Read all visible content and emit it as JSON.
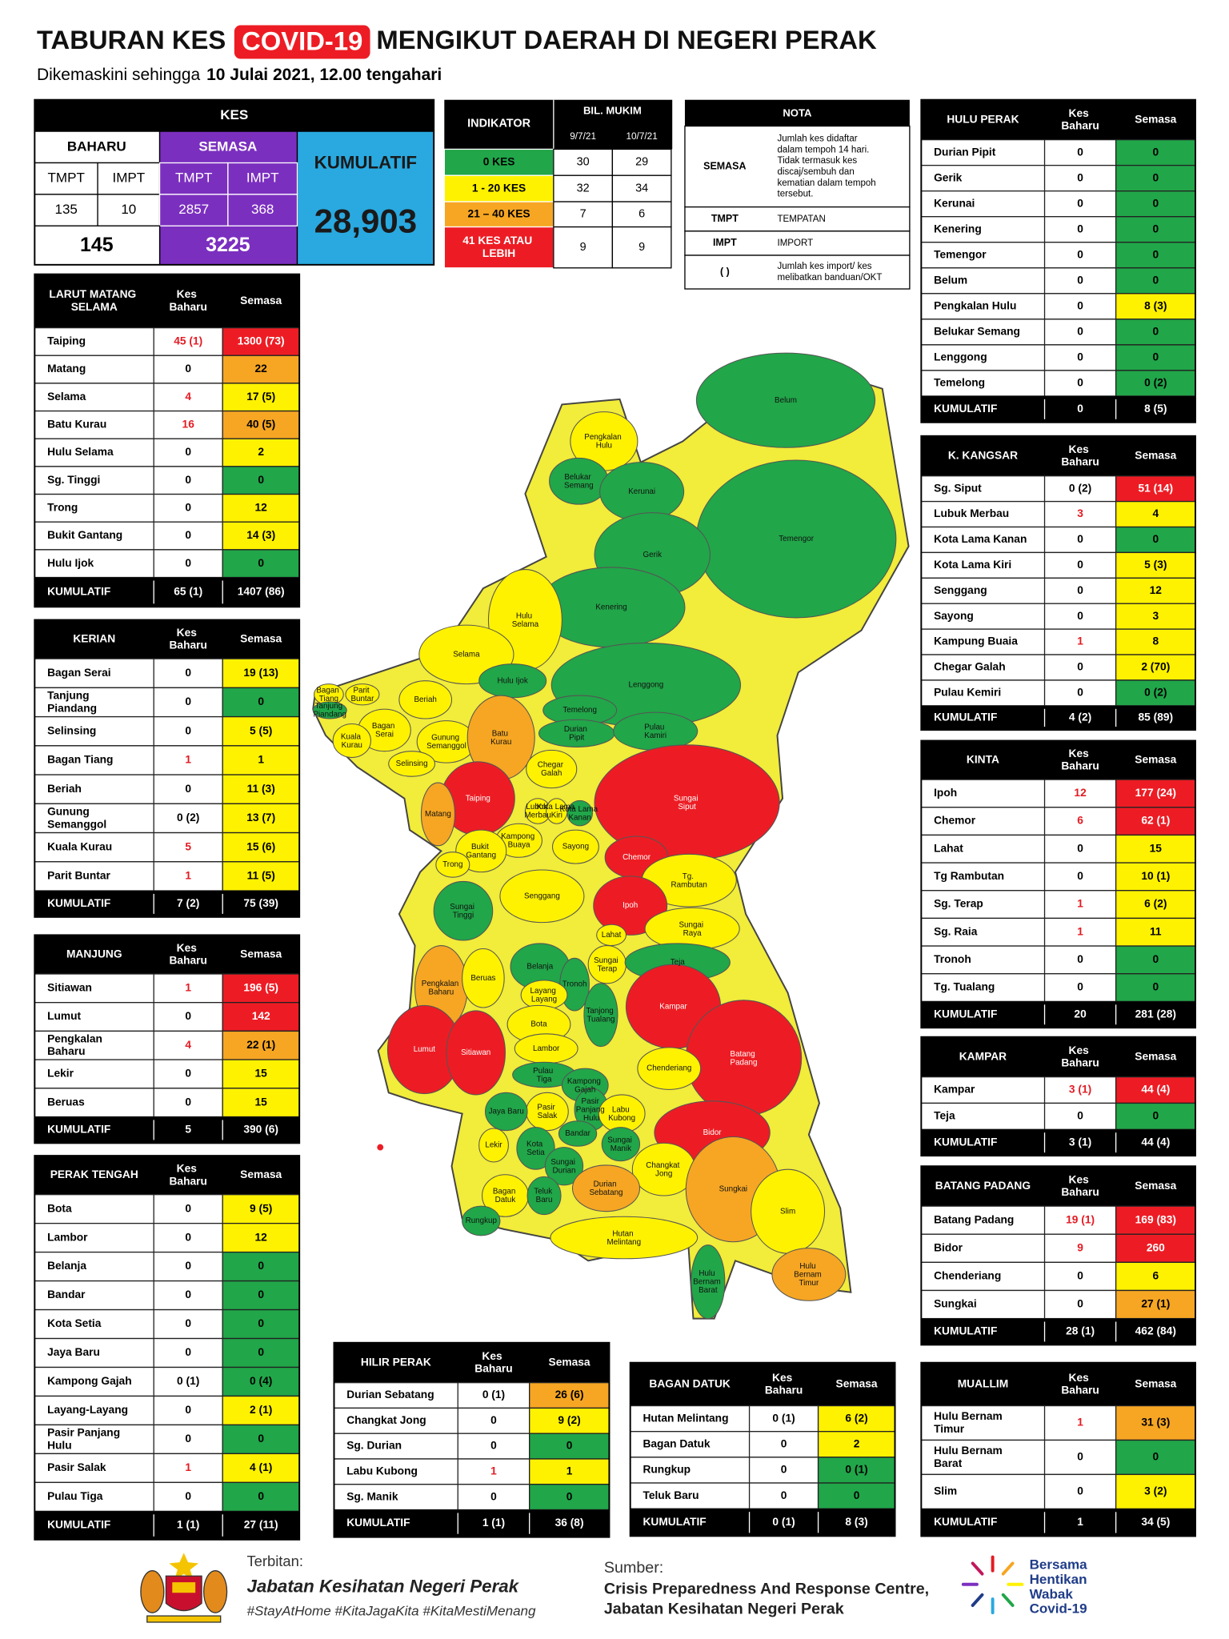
{
  "header": {
    "title": [
      "TABURAN KES",
      "COVID-19",
      "MENGIKUT DAERAH DI NEGERI PERAK"
    ],
    "subtitle": [
      "Dikemaskini sehingga",
      "10 Julai 2021, 12.00 tengahari"
    ]
  },
  "colors": {
    "green": "#21a649",
    "yellow": "#fff200",
    "orange": "#f6a623",
    "red": "#ed1c24",
    "purple": "#7b2fbf",
    "blue": "#29a9e0"
  },
  "kes": {
    "title": "KES",
    "baharu": "BAHARU",
    "semasa": "SEMASA",
    "tmpt": "TMPT",
    "impt": "IMPT",
    "values": [
      135,
      10,
      2857,
      368
    ],
    "totals": [
      145,
      3225
    ],
    "kumulatif_label": "KUMULATIF",
    "kumulatif": "28,903"
  },
  "indikator": {
    "header": "INDIKATOR",
    "bil": "BIL. MUKIM",
    "dates": [
      "9/7/21",
      "10/7/21"
    ],
    "rows": [
      {
        "label": "0 KES",
        "level": "green",
        "values": [
          30,
          29
        ]
      },
      {
        "label": "1 - 20 KES",
        "level": "yellow",
        "values": [
          32,
          34
        ]
      },
      {
        "label": "21 – 40 KES",
        "level": "orange",
        "values": [
          7,
          6
        ]
      },
      {
        "label": "41 KES ATAU LEBIH",
        "level": "red",
        "values": [
          9,
          9
        ]
      }
    ]
  },
  "nota": {
    "title": "NOTA",
    "rows": [
      {
        "key": "SEMASA",
        "text": [
          "Jumlah kes didaftar",
          "dalam tempoh 14 hari.",
          "Tidak termasuk kes",
          "discaj/sembuh dan",
          "kematian dalam tempoh",
          "tersebut."
        ]
      },
      {
        "key": "TMPT",
        "text": [
          "TEMPATAN"
        ]
      },
      {
        "key": "IMPT",
        "text": [
          "IMPORT"
        ]
      },
      {
        "key": "( )",
        "text": [
          "Jumlah kes import/ kes",
          "melibatkan banduan/OKT"
        ]
      }
    ]
  },
  "tables": [
    {
      "title": "LARUT MATANG SELAMA",
      "kes_baharu": "Kes Baharu",
      "semasa": "Semasa",
      "rows": [
        [
          "Taiping",
          "45 (1)",
          "1300 (73)",
          "red"
        ],
        [
          "Matang",
          "0",
          "22",
          "orange"
        ],
        [
          "Selama",
          "4",
          "17 (5)",
          "yellow"
        ],
        [
          "Batu Kurau",
          "16",
          "40 (5)",
          "orange"
        ],
        [
          "Hulu Selama",
          "0",
          "2",
          "yellow"
        ],
        [
          "Sg. Tinggi",
          "0",
          "0",
          "green"
        ],
        [
          "Trong",
          "0",
          "12",
          "yellow"
        ],
        [
          "Bukit Gantang",
          "0",
          "14 (3)",
          "yellow"
        ],
        [
          "Hulu Ijok",
          "0",
          "0",
          "green"
        ]
      ],
      "total": [
        "KUMULATIF",
        "65 (1)",
        "1407 (86)"
      ]
    },
    {
      "title": "KERIAN",
      "kes_baharu": "Kes Baharu",
      "semasa": "Semasa",
      "rows": [
        [
          "Bagan Serai",
          "0",
          "19 (13)",
          "yellow"
        ],
        [
          "Tanjung Piandang",
          "0",
          "0",
          "green"
        ],
        [
          "Selinsing",
          "0",
          "5 (5)",
          "yellow"
        ],
        [
          "Bagan Tiang",
          "1",
          "1",
          "yellow"
        ],
        [
          "Beriah",
          "0",
          "11 (3)",
          "yellow"
        ],
        [
          "Gunung Semanggol",
          "0 (2)",
          "13 (7)",
          "yellow"
        ],
        [
          "Kuala Kurau",
          "5",
          "15 (6)",
          "yellow"
        ],
        [
          "Parit Buntar",
          "1",
          "11 (5)",
          "yellow"
        ]
      ],
      "total": [
        "KUMULATIF",
        "7 (2)",
        "75 (39)"
      ]
    },
    {
      "title": "MANJUNG",
      "kes_baharu": "Kes Baharu",
      "semasa": "Semasa",
      "rows": [
        [
          "Sitiawan",
          "1",
          "196 (5)",
          "red"
        ],
        [
          "Lumut",
          "0",
          "142",
          "red"
        ],
        [
          "Pengkalan Baharu",
          "4",
          "22 (1)",
          "orange"
        ],
        [
          "Lekir",
          "0",
          "15",
          "yellow"
        ],
        [
          "Beruas",
          "0",
          "15",
          "yellow"
        ]
      ],
      "total": [
        "KUMULATIF",
        "5",
        "390 (6)"
      ]
    },
    {
      "title": "PERAK TENGAH",
      "kes_baharu": "Kes Baharu",
      "semasa": "Semasa",
      "rows": [
        [
          "Bota",
          "0",
          "9 (5)",
          "yellow"
        ],
        [
          "Lambor",
          "0",
          "12",
          "yellow"
        ],
        [
          "Belanja",
          "0",
          "0",
          "green"
        ],
        [
          "Bandar",
          "0",
          "0",
          "green"
        ],
        [
          "Kota Setia",
          "0",
          "0",
          "green"
        ],
        [
          "Jaya Baru",
          "0",
          "0",
          "green"
        ],
        [
          "Kampong Gajah",
          "0 (1)",
          "0 (4)",
          "green"
        ],
        [
          "Layang-Layang",
          "0",
          "2 (1)",
          "yellow"
        ],
        [
          "Pasir Panjang Hulu",
          "0",
          "0",
          "green"
        ],
        [
          "Pasir Salak",
          "1",
          "4 (1)",
          "yellow"
        ],
        [
          "Pulau Tiga",
          "0",
          "0",
          "green"
        ]
      ],
      "total": [
        "KUMULATIF",
        "1 (1)",
        "27 (11)"
      ]
    },
    {
      "title": "HILIR PERAK",
      "kes_baharu": "Kes Baharu",
      "semasa": "Semasa",
      "rows": [
        [
          "Durian Sebatang",
          "0 (1)",
          "26 (6)",
          "orange"
        ],
        [
          "Changkat Jong",
          "0",
          "9 (2)",
          "yellow"
        ],
        [
          "Sg. Durian",
          "0",
          "0",
          "green"
        ],
        [
          "Labu Kubong",
          "1",
          "1",
          "yellow"
        ],
        [
          "Sg. Manik",
          "0",
          "0",
          "green"
        ]
      ],
      "total": [
        "KUMULATIF",
        "1 (1)",
        "36 (8)"
      ]
    },
    {
      "title": "BAGAN DATUK",
      "kes_baharu": "Kes Baharu",
      "semasa": "Semasa",
      "rows": [
        [
          "Hutan Melintang",
          "0 (1)",
          "6 (2)",
          "yellow"
        ],
        [
          "Bagan Datuk",
          "0",
          "2",
          "yellow"
        ],
        [
          "Rungkup",
          "0",
          "0 (1)",
          "green"
        ],
        [
          "Teluk Baru",
          "0",
          "0",
          "green"
        ]
      ],
      "total": [
        "KUMULATIF",
        "0 (1)",
        "8 (3)"
      ]
    },
    {
      "title": "HULU PERAK",
      "kes_baharu": "Kes Baharu",
      "semasa": "Semasa",
      "rows": [
        [
          "Durian Pipit",
          "0",
          "0",
          "green"
        ],
        [
          "Gerik",
          "0",
          "0",
          "green"
        ],
        [
          "Kerunai",
          "0",
          "0",
          "green"
        ],
        [
          "Kenering",
          "0",
          "0",
          "green"
        ],
        [
          "Temengor",
          "0",
          "0",
          "green"
        ],
        [
          "Belum",
          "0",
          "0",
          "green"
        ],
        [
          "Pengkalan Hulu",
          "0",
          "8 (3)",
          "yellow"
        ],
        [
          "Belukar Semang",
          "0",
          "0",
          "green"
        ],
        [
          "Lenggong",
          "0",
          "0",
          "green"
        ],
        [
          "Temelong",
          "0",
          "0 (2)",
          "green"
        ]
      ],
      "total": [
        "KUMULATIF",
        "0",
        "8 (5)"
      ]
    },
    {
      "title": "K. KANGSAR",
      "kes_baharu": "Kes Baharu",
      "semasa": "Semasa",
      "rows": [
        [
          "Sg. Siput",
          "0 (2)",
          "51 (14)",
          "red"
        ],
        [
          "Lubuk Merbau",
          "3",
          "4",
          "yellow"
        ],
        [
          "Kota Lama Kanan",
          "0",
          "0",
          "green"
        ],
        [
          "Kota Lama Kiri",
          "0",
          "5 (3)",
          "yellow"
        ],
        [
          "Senggang",
          "0",
          "12",
          "yellow"
        ],
        [
          "Sayong",
          "0",
          "3",
          "yellow"
        ],
        [
          "Kampung Buaia",
          "1",
          "8",
          "yellow"
        ],
        [
          "Chegar Galah",
          "0",
          "2 (70)",
          "yellow"
        ],
        [
          "Pulau Kemiri",
          "0",
          "0 (2)",
          "green"
        ]
      ],
      "total": [
        "KUMULATIF",
        "4 (2)",
        "85 (89)"
      ]
    },
    {
      "title": "KINTA",
      "kes_baharu": "Kes Baharu",
      "semasa": "Semasa",
      "rows": [
        [
          "Ipoh",
          "12",
          "177 (24)",
          "red"
        ],
        [
          "Chemor",
          "6",
          "62 (1)",
          "red"
        ],
        [
          "Lahat",
          "0",
          "15",
          "yellow"
        ],
        [
          "Tg Rambutan",
          "0",
          "10 (1)",
          "yellow"
        ],
        [
          "Sg. Terap",
          "1",
          "6 (2)",
          "yellow"
        ],
        [
          "Sg. Raia",
          "1",
          "11",
          "yellow"
        ],
        [
          "Tronoh",
          "0",
          "0",
          "green"
        ],
        [
          "Tg. Tualang",
          "0",
          "0",
          "green"
        ]
      ],
      "total": [
        "KUMULATIF",
        "20",
        "281 (28)"
      ]
    },
    {
      "title": "KAMPAR",
      "kes_baharu": "Kes Baharu",
      "semasa": "Semasa",
      "rows": [
        [
          "Kampar",
          "3 (1)",
          "44 (4)",
          "red"
        ],
        [
          "Teja",
          "0",
          "0",
          "green"
        ]
      ],
      "total": [
        "KUMULATIF",
        "3 (1)",
        "44 (4)"
      ]
    },
    {
      "title": "BATANG PADANG",
      "kes_baharu": "Kes Baharu",
      "semasa": "Semasa",
      "rows": [
        [
          "Batang Padang",
          "19 (1)",
          "169 (83)",
          "red"
        ],
        [
          "Bidor",
          "9",
          "260",
          "red"
        ],
        [
          "Chenderiang",
          "0",
          "6",
          "yellow"
        ],
        [
          "Sungkai",
          "0",
          "27 (1)",
          "orange"
        ]
      ],
      "total": [
        "KUMULATIF",
        "28 (1)",
        "462 (84)"
      ]
    },
    {
      "title": "MUALLIM",
      "kes_baharu": "Kes Baharu",
      "semasa": "Semasa",
      "rows": [
        [
          "Hulu Bernam Timur",
          "1",
          "31 (3)",
          "orange"
        ],
        [
          "Hulu Bernam Barat",
          "0",
          "0",
          "green"
        ],
        [
          "Slim",
          "0",
          "3 (2)",
          "yellow"
        ]
      ],
      "total": [
        "KUMULATIF",
        "1",
        "34 (5)"
      ]
    }
  ],
  "map": {
    "labels": [
      [
        "Belum",
        "green"
      ],
      [
        "Temengor",
        "green"
      ],
      [
        "Pengkalan Hulu",
        "yellow"
      ],
      [
        "Belukar Semang",
        "green"
      ],
      [
        "Kerunai",
        "green"
      ],
      [
        "Gerik",
        "green"
      ],
      [
        "Kenering",
        "green"
      ],
      [
        "Lenggong",
        "green"
      ],
      [
        "Hulu Selama",
        "yellow"
      ],
      [
        "Selama",
        "yellow"
      ],
      [
        "Hulu Ijok",
        "green"
      ],
      [
        "Temelong",
        "green"
      ],
      [
        "Durian Pipit",
        "green"
      ],
      [
        "Pulau Kamiri",
        "green"
      ],
      [
        "Sungai Siput",
        "red"
      ],
      [
        "Bagan Tiang",
        "yellow"
      ],
      [
        "Parit Buntar",
        "yellow"
      ],
      [
        "Tanjung Piandang",
        "green"
      ],
      [
        "Beriah",
        "yellow"
      ],
      [
        "Bagan Serai",
        "yellow"
      ],
      [
        "Kuala Kurau",
        "yellow"
      ],
      [
        "Gunung Semanggol",
        "yellow"
      ],
      [
        "Batu Kurau",
        "orange"
      ],
      [
        "Selinsing",
        "yellow"
      ],
      [
        "Taiping",
        "red"
      ],
      [
        "Matang",
        "orange"
      ],
      [
        "Chegar Galah",
        "yellow"
      ],
      [
        "Lubok Merbau",
        "yellow"
      ],
      [
        "Kota Lama Kiri",
        "yellow"
      ],
      [
        "Kota Lama Kanan",
        "green"
      ],
      [
        "Kampong Buaya",
        "yellow"
      ],
      [
        "Sayong",
        "yellow"
      ],
      [
        "Bukit Gantang",
        "yellow"
      ],
      [
        "Trong",
        "yellow"
      ],
      [
        "Chemor",
        "red"
      ],
      [
        "Tg. Rambutan",
        "yellow"
      ],
      [
        "Ipoh",
        "red"
      ],
      [
        "Senggang",
        "yellow"
      ],
      [
        "Sungai Tinggi",
        "green"
      ],
      [
        "Sungai Raya",
        "yellow"
      ],
      [
        "Lahat",
        "yellow"
      ],
      [
        "Sungai Terap",
        "yellow"
      ],
      [
        "Teja",
        "green"
      ],
      [
        "Pengkalan Baharu",
        "orange"
      ],
      [
        "Beruas",
        "yellow"
      ],
      [
        "Belanja",
        "green"
      ],
      [
        "Tronoh",
        "green"
      ],
      [
        "Layang Layang",
        "yellow"
      ],
      [
        "Tanjong Tualang",
        "green"
      ],
      [
        "Kampar",
        "red"
      ],
      [
        "Bota",
        "yellow"
      ],
      [
        "Lumut",
        "red"
      ],
      [
        "Sitiawan",
        "red"
      ],
      [
        "Lambor",
        "yellow"
      ],
      [
        "Batang Padang",
        "red"
      ],
      [
        "Chenderiang",
        "yellow"
      ],
      [
        "Pulau Tiga",
        "green"
      ],
      [
        "Kampong Gajah",
        "green"
      ],
      [
        "Pasir Salak",
        "yellow"
      ],
      [
        "Pasir Panjang Hulu",
        "green"
      ],
      [
        "Labu Kubong",
        "yellow"
      ],
      [
        "Jaya Baru",
        "green"
      ],
      [
        "Bandar",
        "green"
      ],
      [
        "Bidor",
        "red"
      ],
      [
        "Lekir",
        "yellow"
      ],
      [
        "Kota Setia",
        "green"
      ],
      [
        "Sungai Manik",
        "green"
      ],
      [
        "Sungai Durian",
        "green"
      ],
      [
        "Changkat Jong",
        "yellow"
      ],
      [
        "Sungkai",
        "orange"
      ],
      [
        "Bagan Datuk",
        "yellow"
      ],
      [
        "Teluk Baru",
        "green"
      ],
      [
        "Durian Sebatang",
        "orange"
      ],
      [
        "Rungkup",
        "green"
      ],
      [
        "Slim",
        "yellow"
      ],
      [
        "Hutan Melintang",
        "yellow"
      ],
      [
        "Hulu Bernam Barat",
        "green"
      ],
      [
        "Hulu Bernam Timur",
        "orange"
      ]
    ]
  },
  "footer": {
    "terbitan": "Terbitan:",
    "publisher": "Jabatan Kesihatan Negeri Perak",
    "hashtags": "#StayAtHome #KitaJagaKita #KitaMestiMenang",
    "sumber": "Sumber:",
    "source": [
      "Crisis Preparedness And Response Centre,",
      "Jabatan Kesihatan Negeri Perak"
    ],
    "slogan": [
      "Bersama",
      "Hentikan",
      "Wabak",
      "Covid-19"
    ]
  }
}
